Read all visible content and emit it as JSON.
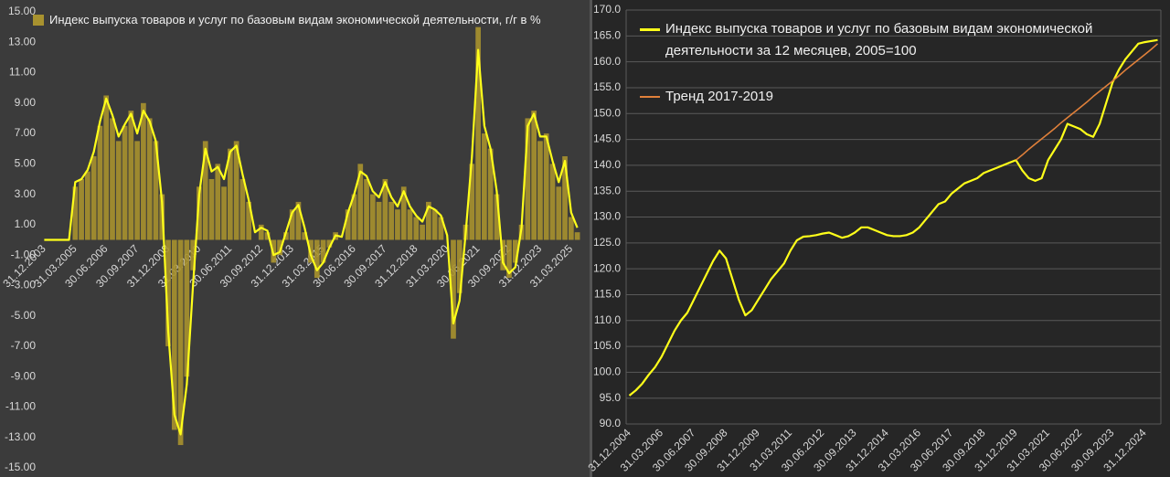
{
  "chart_data": [
    {
      "type": "bar",
      "grid": false,
      "categories": [
        "31.12.2003",
        null,
        null,
        null,
        null,
        "31.03.2005",
        null,
        null,
        null,
        null,
        "30.06.2006",
        null,
        null,
        null,
        null,
        "30.09.2007",
        null,
        null,
        null,
        null,
        "31.12.2008",
        null,
        null,
        null,
        null,
        "31.03.2010",
        null,
        null,
        null,
        null,
        "30.06.2011",
        null,
        null,
        null,
        null,
        "30.09.2012",
        null,
        null,
        null,
        null,
        "31.12.2013",
        null,
        null,
        null,
        null,
        "31.03.2015",
        null,
        null,
        null,
        null,
        "30.06.2016",
        null,
        null,
        null,
        null,
        "30.09.2017",
        null,
        null,
        null,
        null,
        "31.12.2018",
        null,
        null,
        null,
        null,
        "31.03.2020",
        null,
        null,
        null,
        null,
        "30.06.2021",
        null,
        null,
        null,
        null,
        "30.09.2022",
        null,
        null,
        null,
        null,
        "31.12.2023",
        null,
        null,
        null,
        null,
        "31.03.2025",
        null
      ],
      "series": [
        {
          "name": "Индекс выпуска товаров и услуг по базовым видам экономической деятельности, г/г в %",
          "type": "bar",
          "color": "#a8922f",
          "values": [
            0,
            0,
            0,
            0,
            0,
            3.5,
            4,
            4.5,
            5.5,
            7.5,
            9.5,
            8,
            6.5,
            7.5,
            8.5,
            6.5,
            9,
            8,
            6.5,
            3,
            -7,
            -12.5,
            -13.5,
            -9,
            -2,
            3.5,
            6.5,
            4,
            5,
            3.5,
            6,
            6.5,
            4,
            2.5,
            0,
            1,
            0.5,
            -1.5,
            -1,
            0.5,
            2,
            2.5,
            0.5,
            -1.5,
            -2.5,
            -1.5,
            -0.5,
            0.5,
            0,
            2,
            3,
            5,
            4,
            3,
            2.5,
            4,
            2.5,
            2,
            3.5,
            2,
            1.5,
            1,
            2.5,
            2,
            1.5,
            0,
            -6.5,
            -3.5,
            1,
            5,
            14,
            7,
            6,
            3,
            -2,
            -2.5,
            -1.5,
            1,
            8,
            8.5,
            6.5,
            7,
            5,
            3.5,
            5.5,
            1.5,
            0.5
          ]
        },
        {
          "type": "line",
          "color": "#ffff1a",
          "values": [
            0,
            0,
            0,
            0,
            0,
            3.8,
            4.0,
            4.6,
            5.8,
            7.8,
            9.3,
            8.2,
            6.8,
            7.6,
            8.3,
            7.0,
            8.5,
            7.8,
            6.5,
            2.5,
            -6,
            -11.5,
            -12.8,
            -9.5,
            -3,
            3,
            6,
            4.5,
            4.8,
            4,
            5.8,
            6.2,
            4.3,
            2.6,
            0.5,
            0.8,
            0.6,
            -1,
            -0.8,
            0.5,
            1.8,
            2.3,
            0.8,
            -1,
            -2,
            -1.5,
            -0.5,
            0.3,
            0.2,
            1.8,
            3,
            4.5,
            4.2,
            3.2,
            2.8,
            3.8,
            2.8,
            2.2,
            3.2,
            2.2,
            1.6,
            1.2,
            2.2,
            2,
            1.6,
            0.3,
            -5.5,
            -4,
            0.5,
            5.5,
            12.5,
            7.5,
            6,
            3.2,
            -1.5,
            -2.2,
            -1.8,
            0.8,
            7.5,
            8.3,
            6.8,
            6.8,
            5.2,
            3.8,
            5.2,
            1.8,
            0.8
          ]
        }
      ],
      "ylim": [
        -15,
        15
      ],
      "yticks": [
        {
          "value": -15,
          "label": "-15.00"
        },
        {
          "value": -13,
          "label": "-13.00"
        },
        {
          "value": -11,
          "label": "-11.00"
        },
        {
          "value": -9,
          "label": "-9.00"
        },
        {
          "value": -7,
          "label": "-7.00"
        },
        {
          "value": -5,
          "label": "-5.00"
        },
        {
          "value": -3,
          "label": "-3.00"
        },
        {
          "value": -1,
          "label": "-1.00"
        },
        {
          "value": 1,
          "label": "1.00"
        },
        {
          "value": 3,
          "label": "3.00"
        },
        {
          "value": 5,
          "label": "5.00"
        },
        {
          "value": 7,
          "label": "7.00"
        },
        {
          "value": 9,
          "label": "9.00"
        },
        {
          "value": 11,
          "label": "11.00"
        },
        {
          "value": 13,
          "label": "13.00"
        },
        {
          "value": 15,
          "label": "15.00"
        }
      ]
    },
    {
      "type": "line",
      "grid": true,
      "categories": [
        "31.12.2004",
        null,
        null,
        null,
        null,
        "31.03.2006",
        null,
        null,
        null,
        null,
        "30.06.2007",
        null,
        null,
        null,
        null,
        "30.09.2008",
        null,
        null,
        null,
        null,
        "31.12.2009",
        null,
        null,
        null,
        null,
        "31.03.2011",
        null,
        null,
        null,
        null,
        "30.06.2012",
        null,
        null,
        null,
        null,
        "30.09.2013",
        null,
        null,
        null,
        null,
        "31.12.2014",
        null,
        null,
        null,
        null,
        "31.03.2016",
        null,
        null,
        null,
        null,
        "30.06.2017",
        null,
        null,
        null,
        null,
        "30.09.2018",
        null,
        null,
        null,
        null,
        "31.12.2019",
        null,
        null,
        null,
        null,
        "31.03.2021",
        null,
        null,
        null,
        null,
        "30.06.2022",
        null,
        null,
        null,
        null,
        "30.09.2023",
        null,
        null,
        null,
        null,
        "31.12.2024",
        null,
        null
      ],
      "series": [
        {
          "name": "Индекс выпуска товаров и услуг по базовым видам экономической деятельности за 12 месяцев, 2005=100",
          "color": "#ffff1a",
          "values": [
            95.5,
            96.5,
            97.8,
            99.5,
            101,
            103,
            105.5,
            108,
            110,
            111.5,
            114,
            116.5,
            119,
            121.5,
            123.5,
            122,
            118,
            114,
            111,
            112,
            114,
            116,
            118,
            119.5,
            121,
            123.5,
            125.5,
            126.2,
            126.3,
            126.5,
            126.8,
            127,
            126.5,
            126,
            126.3,
            127,
            128,
            128,
            127.5,
            127,
            126.5,
            126.3,
            126.3,
            126.5,
            127,
            128,
            129.5,
            131,
            132.5,
            133,
            134.5,
            135.5,
            136.5,
            137,
            137.5,
            138.5,
            139,
            139.5,
            140,
            140.5,
            141,
            139,
            137.5,
            137,
            137.5,
            141,
            143,
            145,
            148,
            147.5,
            147,
            146,
            145.5,
            148,
            152,
            156,
            158.5,
            160.5,
            162,
            163.5,
            163.8,
            164,
            164.2
          ]
        },
        {
          "name": "Тренд 2017-2019",
          "color": "#e0803a",
          "values": [
            null,
            null,
            null,
            null,
            null,
            null,
            null,
            null,
            null,
            null,
            null,
            null,
            null,
            null,
            null,
            null,
            null,
            null,
            null,
            null,
            null,
            null,
            null,
            null,
            null,
            null,
            null,
            null,
            null,
            null,
            null,
            null,
            null,
            null,
            null,
            null,
            null,
            null,
            null,
            null,
            null,
            null,
            null,
            null,
            null,
            null,
            null,
            null,
            null,
            null,
            null,
            null,
            null,
            null,
            null,
            null,
            null,
            null,
            null,
            null,
            141,
            142,
            143.1,
            144.1,
            145.1,
            146.1,
            147.1,
            148.2,
            149.2,
            150.2,
            151.2,
            152.2,
            153.3,
            154.3,
            155.3,
            156.3,
            157.3,
            158.4,
            159.4,
            160.4,
            161.4,
            162.4,
            163.5
          ]
        }
      ],
      "ylim": [
        90,
        170
      ],
      "yticks": [
        {
          "value": 90,
          "label": "90.0"
        },
        {
          "value": 95,
          "label": "95.0"
        },
        {
          "value": 100,
          "label": "100.0"
        },
        {
          "value": 105,
          "label": "105.0"
        },
        {
          "value": 110,
          "label": "110.0"
        },
        {
          "value": 115,
          "label": "115.0"
        },
        {
          "value": 120,
          "label": "120.0"
        },
        {
          "value": 125,
          "label": "125.0"
        },
        {
          "value": 130,
          "label": "130.0"
        },
        {
          "value": 135,
          "label": "135.0"
        },
        {
          "value": 140,
          "label": "140.0"
        },
        {
          "value": 145,
          "label": "145.0"
        },
        {
          "value": 150,
          "label": "150.0"
        },
        {
          "value": 155,
          "label": "155.0"
        },
        {
          "value": 160,
          "label": "160.0"
        },
        {
          "value": 165,
          "label": "165.0"
        },
        {
          "value": 170,
          "label": "170.0"
        }
      ]
    }
  ]
}
